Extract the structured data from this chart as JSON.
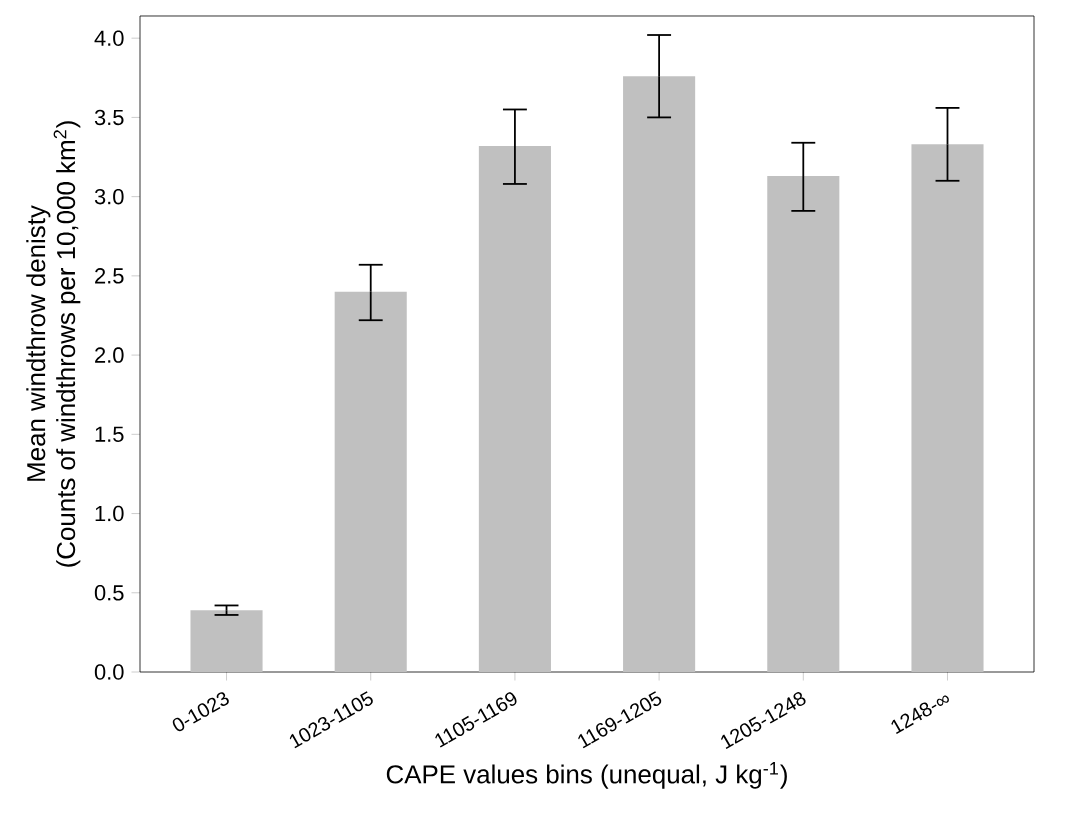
{
  "chart_data": {
    "type": "bar",
    "xlabel": "CAPE values bins (unequal, J kg$^{-1}$)",
    "ylabel": [
      "Mean windthrow denisty",
      "(Counts of windthrows per 10,000 km$^{2}$)"
    ],
    "categories": [
      "0-1023",
      "1023-1105",
      "1105-1169",
      "1169-1205",
      "1205-1248",
      "1248-∞"
    ],
    "values": [
      0.39,
      2.4,
      3.32,
      3.76,
      3.13,
      3.33
    ],
    "errors": [
      [
        0.36,
        0.42
      ],
      [
        2.22,
        2.57
      ],
      [
        3.08,
        3.55
      ],
      [
        3.5,
        4.02
      ],
      [
        2.91,
        3.34
      ],
      [
        3.1,
        3.56
      ]
    ],
    "color": "#c0c0c0",
    "ylim": [
      0,
      4.14
    ],
    "yticks": [
      {
        "value": 0,
        "label": "0.0"
      },
      0.5,
      {
        "value": 1,
        "label": "1.0"
      },
      1.5,
      {
        "value": 2,
        "label": "2.0"
      },
      2.5,
      {
        "value": 3,
        "label": "3.0"
      },
      3.5,
      {
        "value": 4,
        "label": "4.0"
      }
    ],
    "grid": false
  }
}
